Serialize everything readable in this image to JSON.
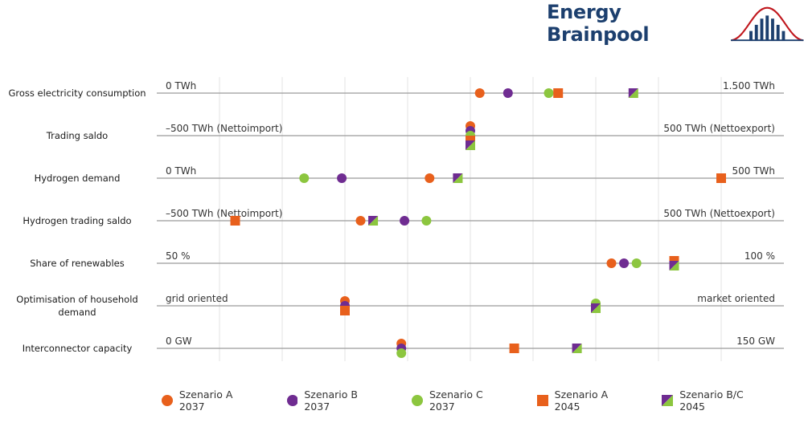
{
  "brand": {
    "name": "Energy Brainpool",
    "colors": {
      "text": "#1c3f6e",
      "logo": "#c0171d"
    }
  },
  "colors": {
    "A2037": "#e8601c",
    "B2037": "#6f2c91",
    "C2037": "#8cc63f",
    "A2045": "#e8601c",
    "BC2045": [
      "#6f2c91",
      "#8cc63f"
    ]
  },
  "chart_data": {
    "type": "scatter",
    "title": "",
    "scale": "normalized 0-100 between left and right label of each row",
    "grid": true,
    "legend_position": "bottom",
    "series": [
      {
        "name": "Szenario A 2037",
        "marker": "circle",
        "color": "#e8601c"
      },
      {
        "name": "Szenario B 2037",
        "marker": "circle",
        "color": "#6f2c91"
      },
      {
        "name": "Szenario C 2037",
        "marker": "circle",
        "color": "#8cc63f"
      },
      {
        "name": "Szenario A 2045",
        "marker": "square",
        "color": "#e8601c"
      },
      {
        "name": "Szenario B/C 2045",
        "marker": "square-split",
        "color": [
          "#6f2c91",
          "#8cc63f"
        ]
      }
    ],
    "rows": [
      {
        "label": [
          "Gross electricity consumption"
        ],
        "left": "0 TWh",
        "right": "1.500 TWh",
        "values": {
          "Szenario A 2037": 51.5,
          "Szenario B 2037": 56.0,
          "Szenario C 2037": 62.5,
          "Szenario A 2045": 64.0,
          "Szenario B/C 2045": 76.0
        }
      },
      {
        "label": [
          "Trading saldo"
        ],
        "left": "–500 TWh (Nettoimport)",
        "right": "500 TWh (Nettoexport)",
        "values": {
          "Szenario A 2037": 50,
          "Szenario B 2037": 50,
          "Szenario C 2037": 50,
          "Szenario A 2045": 50,
          "Szenario B/C 2045": 50
        }
      },
      {
        "label": [
          "Hydrogen demand"
        ],
        "left": "0 TWh",
        "right": "500 TWh",
        "values": {
          "Szenario A 2037": 43.5,
          "Szenario B 2037": 29.5,
          "Szenario C 2037": 23.5,
          "Szenario A 2045": 90.0,
          "Szenario B/C 2045": 48.0
        }
      },
      {
        "label": [
          "Hydrogen trading saldo"
        ],
        "left": "–500 TWh (Nettoimport)",
        "right": "500 TWh (Nettoexport)",
        "values": {
          "Szenario A 2037": 32.5,
          "Szenario B 2037": 39.5,
          "Szenario C 2037": 43.0,
          "Szenario A 2045": 12.5,
          "Szenario B/C 2045": 34.5
        }
      },
      {
        "label": [
          "Share of renewables"
        ],
        "left": "50 %",
        "right": "100 %",
        "values": {
          "Szenario A 2037": 72.5,
          "Szenario B 2037": 74.5,
          "Szenario C 2037": 76.5,
          "Szenario A 2045": 82.5,
          "Szenario B/C 2045": 82.5
        }
      },
      {
        "label": [
          "Optimisation of household",
          "demand"
        ],
        "left": "grid oriented",
        "right": "market oriented",
        "values": {
          "Szenario A 2037": 30.0,
          "Szenario B 2037": 30.0,
          "Szenario C 2037": 70.0,
          "Szenario A 2045": 30.0,
          "Szenario B/C 2045": 70.0
        }
      },
      {
        "label": [
          "Interconnector capacity"
        ],
        "left": "0 GW",
        "right": "150 GW",
        "values": {
          "Szenario A 2037": 39.0,
          "Szenario B 2037": 39.0,
          "Szenario C 2037": 39.0,
          "Szenario A 2045": 57.0,
          "Szenario B/C 2045": 67.0
        }
      }
    ]
  }
}
